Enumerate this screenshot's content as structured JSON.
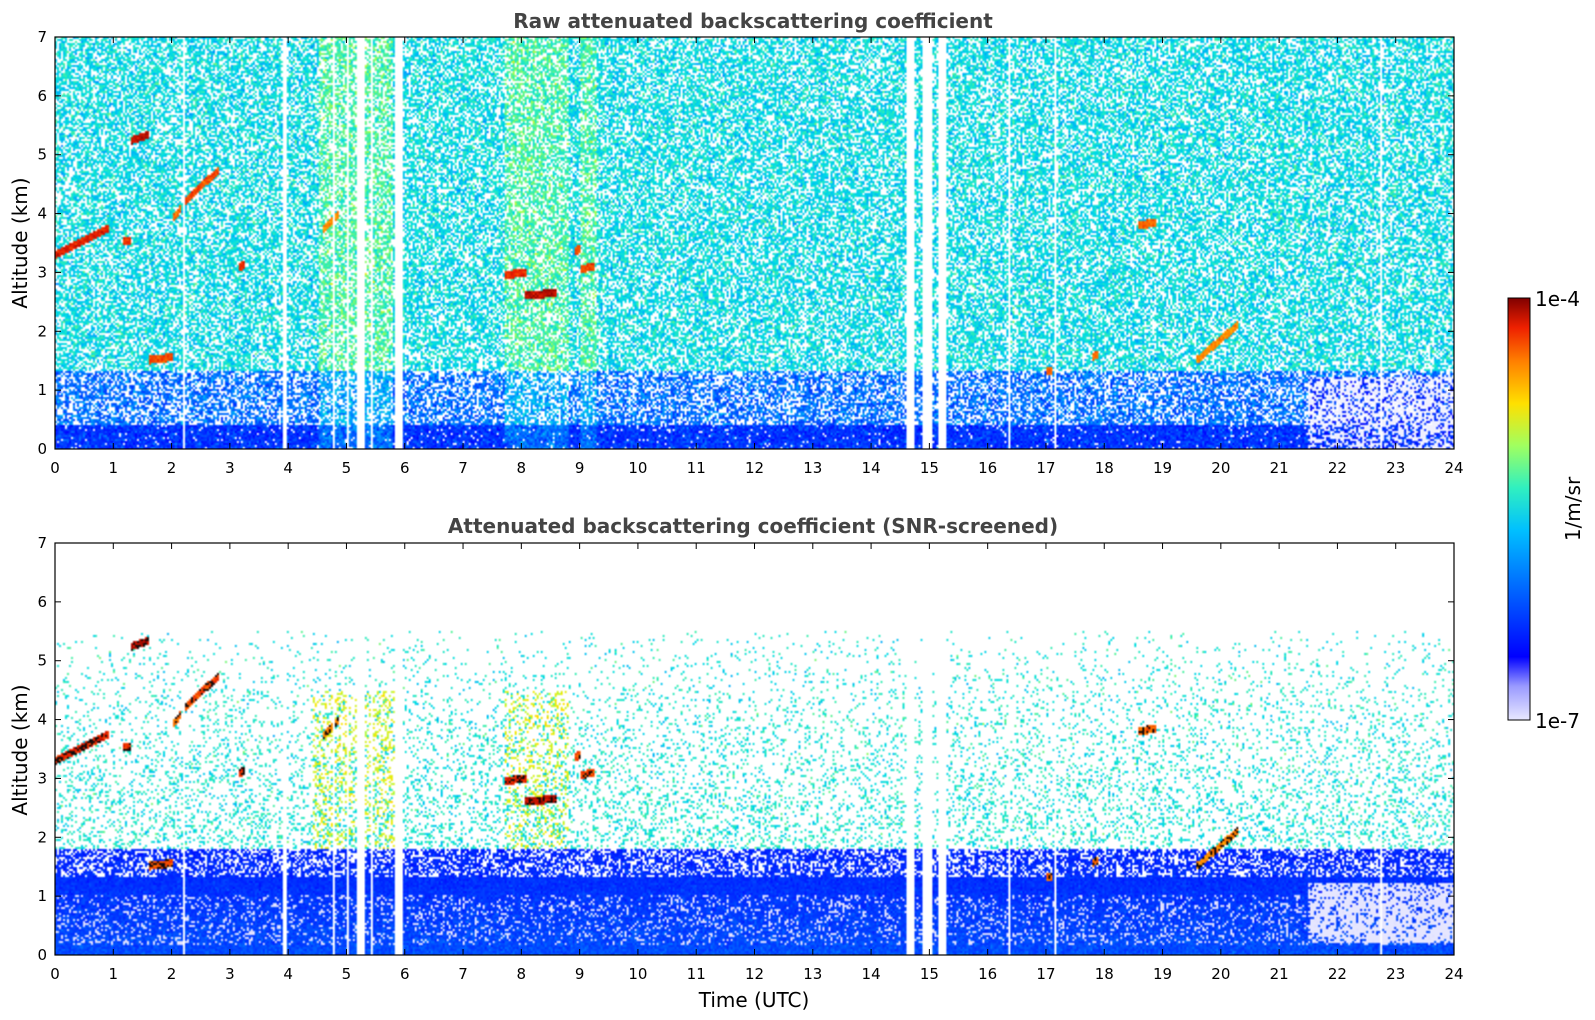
{
  "chart_data": [
    {
      "type": "heatmap",
      "title": "Raw attenuated backscattering coefficient",
      "xlabel": "",
      "ylabel": "Altitude (km)",
      "xlim": [
        0,
        24
      ],
      "ylim": [
        0,
        7
      ],
      "xticks": [
        "0",
        "1",
        "2",
        "3",
        "4",
        "5",
        "6",
        "7",
        "8",
        "9",
        "10",
        "11",
        "12",
        "13",
        "14",
        "15",
        "16",
        "17",
        "18",
        "19",
        "20",
        "21",
        "22",
        "23",
        "24"
      ],
      "yticks": [
        "0",
        "1",
        "2",
        "3",
        "4",
        "5",
        "6",
        "7"
      ],
      "grid": false,
      "data_gaps_utc": [
        [
          2.18,
          2.2
        ],
        [
          3.88,
          3.95
        ],
        [
          4.75,
          4.78
        ],
        [
          4.98,
          5.03
        ],
        [
          5.18,
          5.3
        ],
        [
          5.42,
          5.45
        ],
        [
          5.82,
          5.95
        ],
        [
          9.1,
          9.12
        ],
        [
          13.88,
          13.9
        ],
        [
          14.05,
          14.07
        ],
        [
          14.22,
          14.24
        ],
        [
          14.6,
          14.75
        ],
        [
          14.88,
          15.05
        ],
        [
          15.15,
          15.3
        ],
        [
          15.6,
          15.62
        ],
        [
          16.35,
          16.4
        ],
        [
          17.15,
          17.18
        ],
        [
          22.75,
          22.78
        ]
      ],
      "features": [
        {
          "time_start": 0.0,
          "time_end": 0.9,
          "alt_start_km": 3.3,
          "alt_end_km": 3.75,
          "level": 0.92
        },
        {
          "time_start": 1.3,
          "time_end": 1.6,
          "alt_start_km": 5.25,
          "alt_end_km": 5.35,
          "level": 0.96
        },
        {
          "time_start": 2.2,
          "time_end": 2.8,
          "alt_start_km": 4.2,
          "alt_end_km": 4.75,
          "level": 0.88
        },
        {
          "time_start": 2.0,
          "time_end": 2.15,
          "alt_start_km": 3.9,
          "alt_end_km": 4.1,
          "level": 0.85
        },
        {
          "time_start": 1.15,
          "time_end": 1.3,
          "alt_start_km": 3.52,
          "alt_end_km": 3.55,
          "level": 0.9
        },
        {
          "time_start": 3.15,
          "time_end": 3.25,
          "alt_start_km": 3.1,
          "alt_end_km": 3.12,
          "level": 0.9
        },
        {
          "time_start": 1.6,
          "time_end": 2.0,
          "alt_start_km": 1.5,
          "alt_end_km": 1.55,
          "level": 0.88
        },
        {
          "time_start": 4.6,
          "time_end": 4.85,
          "alt_start_km": 3.75,
          "alt_end_km": 4.0,
          "level": 0.82
        },
        {
          "time_start": 7.7,
          "time_end": 8.1,
          "alt_start_km": 2.95,
          "alt_end_km": 3.0,
          "level": 0.92
        },
        {
          "time_start": 8.05,
          "time_end": 8.6,
          "alt_start_km": 2.6,
          "alt_end_km": 2.65,
          "level": 0.96
        },
        {
          "time_start": 9.0,
          "time_end": 9.25,
          "alt_start_km": 3.05,
          "alt_end_km": 3.1,
          "level": 0.88
        },
        {
          "time_start": 8.9,
          "time_end": 9.0,
          "alt_start_km": 3.35,
          "alt_end_km": 3.4,
          "level": 0.88
        },
        {
          "time_start": 18.6,
          "time_end": 18.9,
          "alt_start_km": 3.8,
          "alt_end_km": 3.85,
          "level": 0.85
        },
        {
          "time_start": 19.6,
          "time_end": 20.3,
          "alt_start_km": 1.5,
          "alt_end_km": 2.1,
          "level": 0.82
        },
        {
          "time_start": 17.0,
          "time_end": 17.1,
          "alt_start_km": 1.3,
          "alt_end_km": 1.32,
          "level": 0.85
        },
        {
          "time_start": 17.8,
          "time_end": 17.9,
          "alt_start_km": 1.55,
          "alt_end_km": 1.6,
          "level": 0.85
        }
      ]
    },
    {
      "type": "heatmap",
      "title": "Attenuated backscattering coefficient (SNR-screened)",
      "xlabel": "Time (UTC)",
      "ylabel": "Altitude (km)",
      "xlim": [
        0,
        24
      ],
      "ylim": [
        0,
        7
      ],
      "xticks": [
        "0",
        "1",
        "2",
        "3",
        "4",
        "5",
        "6",
        "7",
        "8",
        "9",
        "10",
        "11",
        "12",
        "13",
        "14",
        "15",
        "16",
        "17",
        "18",
        "19",
        "20",
        "21",
        "22",
        "23",
        "24"
      ],
      "yticks": [
        "0",
        "1",
        "2",
        "3",
        "4",
        "5",
        "6",
        "7"
      ],
      "grid": false,
      "colorbar": {
        "label": "1/m/sr",
        "min_label": "1e-7",
        "max_label": "1e-4",
        "colormap": "jet"
      }
    }
  ]
}
